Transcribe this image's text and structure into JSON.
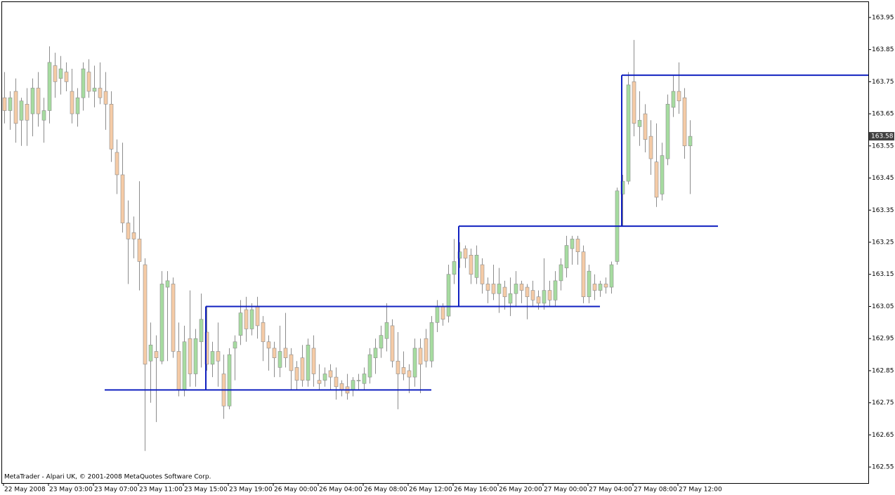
{
  "chart_data": {
    "type": "candlestick",
    "categories": [
      "22 May 2008",
      null,
      null,
      null,
      null,
      null,
      null,
      null,
      "23 May 03:00",
      null,
      null,
      null,
      null,
      null,
      null,
      null,
      "23 May 07:00",
      null,
      null,
      null,
      null,
      null,
      null,
      null,
      "23 May 11:00",
      null,
      null,
      null,
      null,
      null,
      null,
      null,
      "23 May 15:00",
      null,
      null,
      null,
      null,
      null,
      null,
      null,
      "23 May 19:00",
      null,
      null,
      null,
      null,
      null,
      null,
      null,
      "26 May 00:00",
      null,
      null,
      null,
      null,
      null,
      null,
      null,
      "26 May 04:00",
      null,
      null,
      null,
      null,
      null,
      null,
      null,
      "26 May 08:00",
      null,
      null,
      null,
      null,
      null,
      null,
      null,
      "26 May 12:00",
      null,
      null,
      null,
      null,
      null,
      null,
      null,
      "26 May 16:00",
      null,
      null,
      null,
      null,
      null,
      null,
      null,
      "26 May 20:00",
      null,
      null,
      null,
      null,
      null,
      null,
      null,
      "27 May 00:00",
      null,
      null,
      null,
      null,
      null,
      null,
      null,
      "27 May 04:00",
      null,
      null,
      null,
      null,
      null,
      null,
      null,
      "27 May 08:00",
      null,
      null,
      null,
      null,
      null,
      null,
      null,
      "27 May 12:00",
      null,
      null
    ],
    "open": [
      163.7,
      163.66,
      163.72,
      163.63,
      163.68,
      163.65,
      163.73,
      163.63,
      163.66,
      163.8,
      163.76,
      163.78,
      163.72,
      163.65,
      163.7,
      163.78,
      163.72,
      163.73,
      163.72,
      163.68,
      163.53,
      163.46,
      163.31,
      163.28,
      163.26,
      163.18,
      162.88,
      162.91,
      162.88,
      163.11,
      163.12,
      162.91,
      162.79,
      162.95,
      162.84,
      162.94,
      162.97,
      162.87,
      162.91,
      162.84,
      162.74,
      162.92,
      162.96,
      163.04,
      162.98,
      163.05,
      163.0,
      162.94,
      162.92,
      162.86,
      162.92,
      162.9,
      162.86,
      162.89,
      162.82,
      162.92,
      162.82,
      162.82,
      162.85,
      162.83,
      162.81,
      162.8,
      162.79,
      162.82,
      162.81,
      162.83,
      162.89,
      162.92,
      162.95,
      162.99,
      162.88,
      162.86,
      162.85,
      162.83,
      162.92,
      162.95,
      162.88,
      163.0,
      163.05,
      163.02,
      163.15,
      163.2,
      163.23,
      163.21,
      163.14,
      163.18,
      163.12,
      163.12,
      163.09,
      163.11,
      163.06,
      163.09,
      163.12,
      163.11,
      163.1,
      163.08,
      163.06,
      163.1,
      163.07,
      163.13,
      163.17,
      163.23,
      163.26,
      163.22,
      163.08,
      163.12,
      163.1,
      163.12,
      163.11,
      163.19,
      163.4,
      163.44,
      163.75,
      163.61,
      163.65,
      163.58,
      163.5,
      163.4,
      163.51,
      163.67,
      163.72,
      163.7,
      163.55
    ],
    "high": [
      163.78,
      163.72,
      163.76,
      163.7,
      163.73,
      163.76,
      163.78,
      163.7,
      163.86,
      163.84,
      163.83,
      163.81,
      163.79,
      163.73,
      163.81,
      163.82,
      163.8,
      163.81,
      163.78,
      163.72,
      163.57,
      163.56,
      163.38,
      163.33,
      163.44,
      163.2,
      163.0,
      162.96,
      163.16,
      163.16,
      163.14,
      163.0,
      162.99,
      163.1,
      162.98,
      163.09,
      163.05,
      162.94,
      163.0,
      162.9,
      162.92,
      162.96,
      163.07,
      163.08,
      163.06,
      163.08,
      163.02,
      162.96,
      162.94,
      162.99,
      163.03,
      162.92,
      162.88,
      162.93,
      162.95,
      162.96,
      162.87,
      162.86,
      162.87,
      162.86,
      162.82,
      162.84,
      162.83,
      162.84,
      162.86,
      162.92,
      162.95,
      162.99,
      163.06,
      163.01,
      162.97,
      162.91,
      162.87,
      162.95,
      162.95,
      162.98,
      163.02,
      163.07,
      163.06,
      163.18,
      163.26,
      163.25,
      163.24,
      163.23,
      163.24,
      163.2,
      163.14,
      163.18,
      163.17,
      163.13,
      163.14,
      163.16,
      163.13,
      163.12,
      163.13,
      163.1,
      163.2,
      163.13,
      163.16,
      163.2,
      163.27,
      163.27,
      163.27,
      163.24,
      163.18,
      163.15,
      163.13,
      163.14,
      163.19,
      163.42,
      163.46,
      163.78,
      163.88,
      163.72,
      163.68,
      163.63,
      163.62,
      163.56,
      163.71,
      163.77,
      163.81,
      163.73,
      163.63
    ],
    "low": [
      163.62,
      163.6,
      163.56,
      163.55,
      163.55,
      163.58,
      163.61,
      163.56,
      163.62,
      163.7,
      163.71,
      163.72,
      163.62,
      163.61,
      163.66,
      163.7,
      163.67,
      163.68,
      163.6,
      163.5,
      163.4,
      163.28,
      163.12,
      163.2,
      163.1,
      162.6,
      162.75,
      162.69,
      162.87,
      162.88,
      162.89,
      162.77,
      162.77,
      162.8,
      162.8,
      162.86,
      162.85,
      162.83,
      162.8,
      162.7,
      162.73,
      162.82,
      162.93,
      162.94,
      162.96,
      162.95,
      162.88,
      162.85,
      162.83,
      162.83,
      162.86,
      162.79,
      162.79,
      162.8,
      162.8,
      162.8,
      162.79,
      162.8,
      162.79,
      162.76,
      162.77,
      162.76,
      162.77,
      162.79,
      162.79,
      162.81,
      162.84,
      162.89,
      162.91,
      162.86,
      162.73,
      162.82,
      162.78,
      162.8,
      162.78,
      162.86,
      162.86,
      162.97,
      162.99,
      163.0,
      163.12,
      163.17,
      163.17,
      163.12,
      163.12,
      163.09,
      163.06,
      163.07,
      163.03,
      163.04,
      163.02,
      163.05,
      163.06,
      163.01,
      163.05,
      163.04,
      163.04,
      163.05,
      163.05,
      163.1,
      163.14,
      163.18,
      163.18,
      163.06,
      163.06,
      163.07,
      163.08,
      163.09,
      163.09,
      163.18,
      163.3,
      163.43,
      163.58,
      163.55,
      163.53,
      163.46,
      163.36,
      163.38,
      163.49,
      163.64,
      163.65,
      163.51,
      163.4
    ],
    "close": [
      163.66,
      163.7,
      163.62,
      163.69,
      163.63,
      163.73,
      163.65,
      163.66,
      163.81,
      163.75,
      163.79,
      163.75,
      163.65,
      163.7,
      163.79,
      163.72,
      163.73,
      163.7,
      163.68,
      163.54,
      163.46,
      163.31,
      163.26,
      163.26,
      163.19,
      162.87,
      162.93,
      162.89,
      163.12,
      163.13,
      162.91,
      162.79,
      162.94,
      162.84,
      162.95,
      163.01,
      162.87,
      162.91,
      162.88,
      162.74,
      162.9,
      162.94,
      163.03,
      162.98,
      163.04,
      162.99,
      162.94,
      162.92,
      162.89,
      162.91,
      162.89,
      162.85,
      162.82,
      162.82,
      162.93,
      162.84,
      162.81,
      162.84,
      162.83,
      162.8,
      162.79,
      162.78,
      162.82,
      162.82,
      162.84,
      162.9,
      162.92,
      162.96,
      163.0,
      162.88,
      162.84,
      162.84,
      162.83,
      162.92,
      162.87,
      162.88,
      163.0,
      163.05,
      163.01,
      163.15,
      163.19,
      163.22,
      163.2,
      163.15,
      163.21,
      163.12,
      163.1,
      163.09,
      163.12,
      163.08,
      163.09,
      163.12,
      163.1,
      163.08,
      163.07,
      163.06,
      163.1,
      163.07,
      163.13,
      163.18,
      163.24,
      163.26,
      163.22,
      163.08,
      163.16,
      163.1,
      163.12,
      163.11,
      163.18,
      163.41,
      163.44,
      163.74,
      163.62,
      163.63,
      163.57,
      163.51,
      163.39,
      163.52,
      163.68,
      163.72,
      163.69,
      163.55,
      163.58
    ],
    "up_color": "#a6dca0",
    "down_color": "#f5cba6",
    "wick_color": "#8c8c8c",
    "levels": [
      {
        "value": 162.79,
        "start": 18,
        "end": 76
      },
      {
        "value": 163.05,
        "start": 36,
        "end": 106
      },
      {
        "value": 163.3,
        "start": 81,
        "end": 127
      },
      {
        "value": 163.77,
        "start": 110,
        "end": 154
      }
    ],
    "level_color": "#1020c0",
    "ylim": [
      162.5,
      164.0
    ],
    "yticks": [
      162.55,
      162.65,
      162.75,
      162.85,
      162.95,
      163.05,
      163.15,
      163.25,
      163.35,
      163.45,
      163.55,
      163.65,
      163.75,
      163.85,
      163.95
    ],
    "watermark": "MetaTrader - Alpari UK, © 2001-2008 MetaQuotes Software Corp."
  }
}
